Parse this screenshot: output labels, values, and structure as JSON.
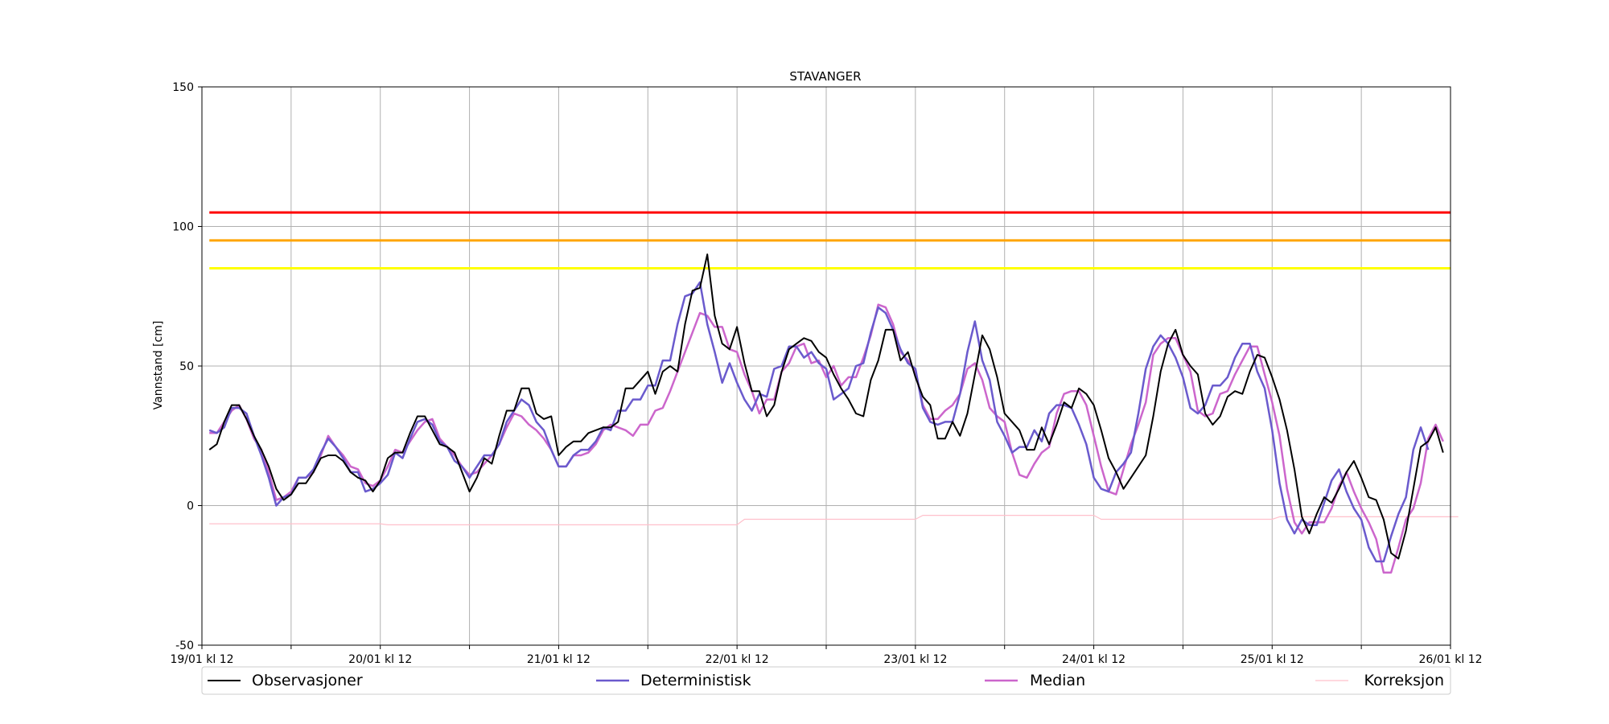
{
  "chart_data": {
    "type": "line",
    "title": "STAVANGER",
    "xlabel": "",
    "ylabel": "Vannstand [cm]",
    "ylim": [
      -50,
      150
    ],
    "yticks": [
      -50,
      0,
      50,
      100,
      150
    ],
    "xlim": [
      0,
      168
    ],
    "xtick_labels": [
      "19/01 kl 12",
      "20/01 kl 12",
      "21/01 kl 12",
      "22/01 kl 12",
      "23/01 kl 12",
      "24/01 kl 12",
      "25/01 kl 12",
      "26/01 kl 12"
    ],
    "x_unit": "hours since 19/01 kl 12",
    "grid": true,
    "legend_position": "bottom",
    "thresholds": [
      {
        "level": 105,
        "color": "#ff0000"
      },
      {
        "level": 95,
        "color": "#ffa500"
      },
      {
        "level": 85,
        "color": "#ffff00"
      }
    ],
    "series": [
      {
        "name": "Observasjoner",
        "color": "#000000",
        "width": 2,
        "step": 1,
        "values": [
          20,
          22,
          30,
          36,
          36,
          31,
          25,
          20,
          14,
          6,
          2,
          4,
          8,
          8,
          12,
          17,
          18,
          18,
          16,
          12,
          10,
          9,
          5,
          9,
          17,
          19,
          19,
          26,
          32,
          32,
          27,
          22,
          21,
          19,
          12,
          5,
          10,
          17,
          15,
          25,
          34,
          34,
          42,
          42,
          33,
          31,
          32,
          18,
          21,
          23,
          23,
          26,
          27,
          28,
          28,
          30,
          42,
          42,
          45,
          48,
          40,
          48,
          50,
          48,
          65,
          77,
          78,
          90,
          68,
          58,
          56,
          64,
          51,
          41,
          41,
          32,
          36,
          48,
          56,
          58,
          60,
          59,
          55,
          53,
          47,
          42,
          38,
          33,
          32,
          45,
          52,
          63,
          63,
          52,
          55,
          46,
          39,
          36,
          24,
          24,
          30,
          25,
          33,
          47,
          61,
          56,
          46,
          33,
          30,
          27,
          20,
          20,
          28,
          22,
          29,
          37,
          35,
          42,
          40,
          36,
          27,
          17,
          12,
          6,
          10,
          14,
          18,
          32,
          48,
          58,
          63,
          54,
          50,
          47,
          33,
          29,
          32,
          39,
          41,
          40,
          48,
          54,
          53,
          46,
          38,
          27,
          13,
          -4,
          -10,
          -3,
          3,
          1,
          6,
          12,
          16,
          10,
          3,
          2,
          -5,
          -17,
          -19,
          -9,
          6,
          21,
          23,
          28,
          19
        ]
      },
      {
        "name": "Deterministisk",
        "color": "#6a5acd",
        "width": 2.5,
        "step": 1,
        "values": [
          27,
          26,
          28,
          35,
          35,
          33,
          25,
          18,
          10,
          0,
          3,
          4,
          10,
          10,
          13,
          19,
          24,
          21,
          17,
          12,
          12,
          5,
          6,
          8,
          11,
          19,
          17,
          24,
          30,
          31,
          29,
          23,
          21,
          16,
          14,
          10,
          14,
          18,
          18,
          22,
          30,
          34,
          38,
          36,
          30,
          27,
          20,
          14,
          14,
          18,
          20,
          20,
          23,
          28,
          27,
          34,
          34,
          38,
          38,
          43,
          43,
          52,
          52,
          65,
          75,
          76,
          80,
          65,
          55,
          44,
          51,
          44,
          38,
          34,
          40,
          39,
          49,
          50,
          57,
          57,
          53,
          55,
          51,
          49,
          38,
          40,
          42,
          50,
          51,
          62,
          71,
          69,
          63,
          56,
          51,
          49,
          35,
          30,
          29,
          30,
          30,
          40,
          55,
          66,
          52,
          45,
          30,
          25,
          19,
          21,
          21,
          27,
          23,
          33,
          36,
          36,
          35,
          29,
          22,
          10,
          6,
          5,
          12,
          15,
          19,
          33,
          49,
          57,
          61,
          58,
          53,
          46,
          35,
          33,
          36,
          43,
          43,
          46,
          53,
          58,
          58,
          48,
          42,
          27,
          8,
          -5,
          -10,
          -5,
          -7,
          -7,
          1,
          9,
          13,
          5,
          -1,
          -5,
          -15,
          -20,
          -20,
          -11,
          -3,
          3,
          20,
          28,
          20
        ]
      },
      {
        "name": "Median",
        "color": "#cc66cc",
        "width": 2.5,
        "step": 1,
        "values": [
          26,
          26,
          30,
          34,
          36,
          31,
          24,
          20,
          12,
          2,
          3,
          5,
          10,
          10,
          12,
          18,
          25,
          21,
          18,
          14,
          13,
          8,
          7,
          9,
          14,
          20,
          19,
          23,
          27,
          30,
          31,
          24,
          21,
          18,
          14,
          11,
          12,
          15,
          18,
          22,
          28,
          33,
          32,
          29,
          27,
          24,
          20,
          14,
          14,
          18,
          18,
          19,
          22,
          27,
          29,
          28,
          27,
          25,
          29,
          29,
          34,
          35,
          41,
          48,
          55,
          62,
          69,
          68,
          64,
          64,
          56,
          55,
          47,
          41,
          33,
          38,
          38,
          48,
          51,
          57,
          58,
          51,
          52,
          46,
          50,
          43,
          46,
          46,
          53,
          61,
          72,
          71,
          65,
          55,
          52,
          48,
          36,
          31,
          31,
          34,
          36,
          40,
          49,
          51,
          45,
          35,
          32,
          30,
          19,
          11,
          10,
          15,
          19,
          21,
          33,
          40,
          41,
          41,
          36,
          25,
          14,
          5,
          4,
          13,
          22,
          29,
          37,
          54,
          58,
          60,
          60,
          54,
          48,
          34,
          32,
          33,
          40,
          41,
          47,
          52,
          57,
          57,
          47,
          37,
          25,
          6,
          -6,
          -10,
          -6,
          -6,
          -6,
          -1,
          7,
          12,
          5,
          -1,
          -6,
          -12,
          -24,
          -24,
          -15,
          -5,
          -1,
          8,
          24,
          29,
          23
        ]
      },
      {
        "name": "Korreksjon",
        "color": "#ffc0cb",
        "width": 1.2,
        "step": 24,
        "values": [
          -6.5,
          -6.9,
          -6.9,
          -4.9,
          -3.5,
          -4.9,
          -4.0,
          -4.0
        ]
      }
    ]
  }
}
